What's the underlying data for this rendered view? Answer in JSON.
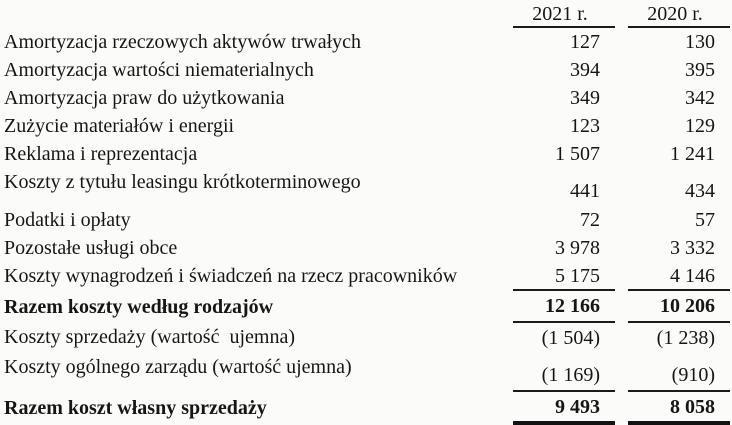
{
  "page": {
    "background_color": "#fbfbfa",
    "text_color": "#161616",
    "rule_color": "#1b1b1b"
  },
  "table": {
    "columns": [
      "2021 r.",
      "2020 r."
    ],
    "rows": [
      {
        "label": "Amortyzacja rzeczowych aktywów trwałych",
        "values": [
          "127",
          "130"
        ]
      },
      {
        "label": "Amortyzacja wartości niematerialnych",
        "values": [
          "394",
          "395"
        ]
      },
      {
        "label": "Amortyzacja praw do użytkowania",
        "values": [
          "349",
          "342"
        ]
      },
      {
        "label": "Zużycie materiałów i energii",
        "values": [
          "123",
          "129"
        ]
      },
      {
        "label": "Reklama i reprezentacja",
        "values": [
          "1 507",
          "1 241"
        ]
      },
      {
        "label": "Koszty z tytułu leasingu krótkoterminowego",
        "values": [
          "441",
          "434"
        ],
        "tall": true
      },
      {
        "label": "Podatki i opłaty",
        "values": [
          "72",
          "57"
        ]
      },
      {
        "label": "Pozostałe usługi obce",
        "values": [
          "3 978",
          "3 332"
        ]
      },
      {
        "label": "Koszty wynagrodzeń i świadczeń na rzecz pracowników",
        "values": [
          "5 175",
          "4 146"
        ],
        "rule_below": "thin"
      },
      {
        "label": "Razem koszty według rodzajów",
        "values": [
          "12 166",
          "10 206"
        ],
        "bold": true,
        "rule_below": "thin"
      },
      {
        "label": "Koszty sprzedaży (wartość  ujemna)",
        "values": [
          "(1 504)",
          "(1 238)"
        ]
      },
      {
        "label": "Koszty ogólnego zarządu (wartość ujemna)",
        "values": [
          "(1 169)",
          "(910)"
        ],
        "tall": true,
        "rule_below": "thin"
      },
      {
        "label": "Razem koszt własny sprzedaży",
        "values": [
          "9 493",
          "8 058"
        ],
        "bold": true,
        "rule_below": "thick"
      }
    ]
  }
}
